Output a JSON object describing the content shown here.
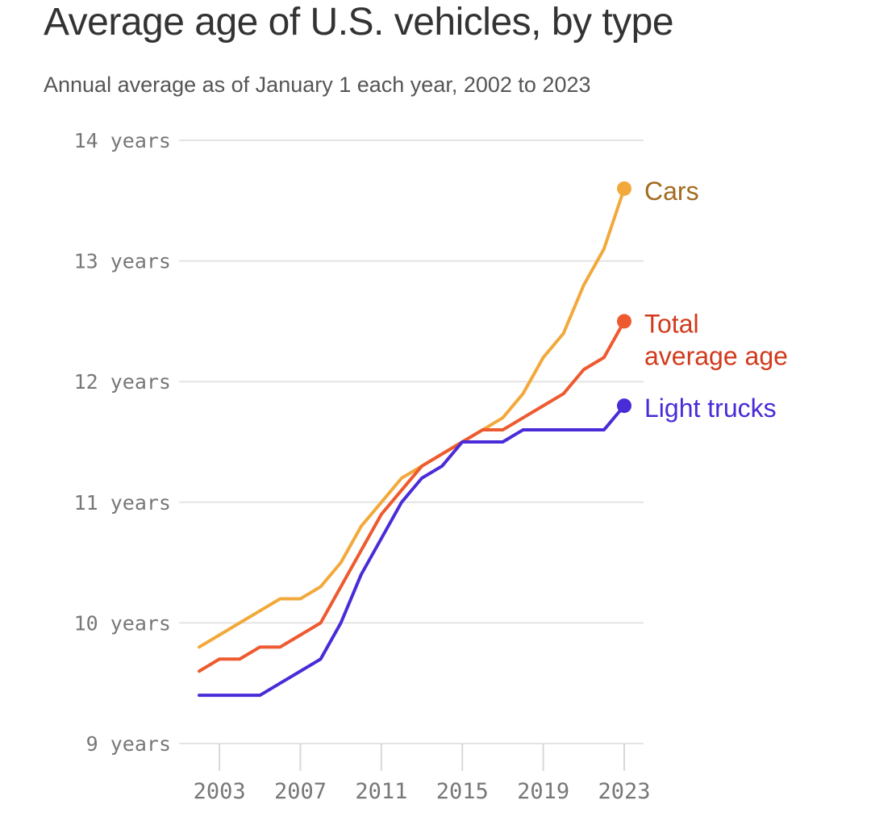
{
  "chart_data": {
    "type": "line",
    "title": "Average age of U.S. vehicles, by type",
    "subtitle": "Annual average as of January 1 each year, 2002 to 2023",
    "xlabel": "",
    "ylabel": "",
    "x": [
      2002,
      2003,
      2004,
      2005,
      2006,
      2007,
      2008,
      2009,
      2010,
      2011,
      2012,
      2013,
      2014,
      2015,
      2016,
      2017,
      2018,
      2019,
      2020,
      2021,
      2022,
      2023
    ],
    "xlim": [
      2002,
      2023
    ],
    "ylim": [
      9,
      14
    ],
    "grid": true,
    "x_ticks": [
      {
        "value": 2003,
        "label": "2003"
      },
      {
        "value": 2007,
        "label": "2007"
      },
      {
        "value": 2011,
        "label": "2011"
      },
      {
        "value": 2015,
        "label": "2015"
      },
      {
        "value": 2019,
        "label": "2019"
      },
      {
        "value": 2023,
        "label": "2023"
      }
    ],
    "y_ticks": [
      {
        "value": 14,
        "label": "14 years"
      },
      {
        "value": 13,
        "label": "13 years"
      },
      {
        "value": 12,
        "label": "12 years"
      },
      {
        "value": 11,
        "label": "11 years"
      },
      {
        "value": 10,
        "label": "10 years"
      },
      {
        "value": 9,
        "label": "9 years"
      }
    ],
    "series": [
      {
        "name": "Cars",
        "label_lines": [
          "Cars"
        ],
        "color": "#F2A93B",
        "label_color": "#A36A1E",
        "values": [
          9.8,
          9.9,
          10.0,
          10.1,
          10.2,
          10.2,
          10.3,
          10.5,
          10.8,
          11.0,
          11.2,
          11.3,
          11.4,
          11.5,
          11.6,
          11.7,
          11.9,
          12.2,
          12.4,
          12.8,
          13.1,
          13.6
        ]
      },
      {
        "name": "Total average age",
        "label_lines": [
          "Total",
          "average age"
        ],
        "color": "#EE5A2F",
        "label_color": "#D13A1C",
        "values": [
          9.6,
          9.7,
          9.7,
          9.8,
          9.8,
          9.9,
          10.0,
          10.3,
          10.6,
          10.9,
          11.1,
          11.3,
          11.4,
          11.5,
          11.6,
          11.6,
          11.7,
          11.8,
          11.9,
          12.1,
          12.2,
          12.5
        ]
      },
      {
        "name": "Light trucks",
        "label_lines": [
          "Light trucks"
        ],
        "color": "#4A2BD8",
        "label_color": "#4A2BD8",
        "values": [
          9.4,
          9.4,
          9.4,
          9.4,
          9.5,
          9.6,
          9.7,
          10.0,
          10.4,
          10.7,
          11.0,
          11.2,
          11.3,
          11.5,
          11.5,
          11.5,
          11.6,
          11.6,
          11.6,
          11.6,
          11.6,
          11.8
        ]
      }
    ]
  }
}
